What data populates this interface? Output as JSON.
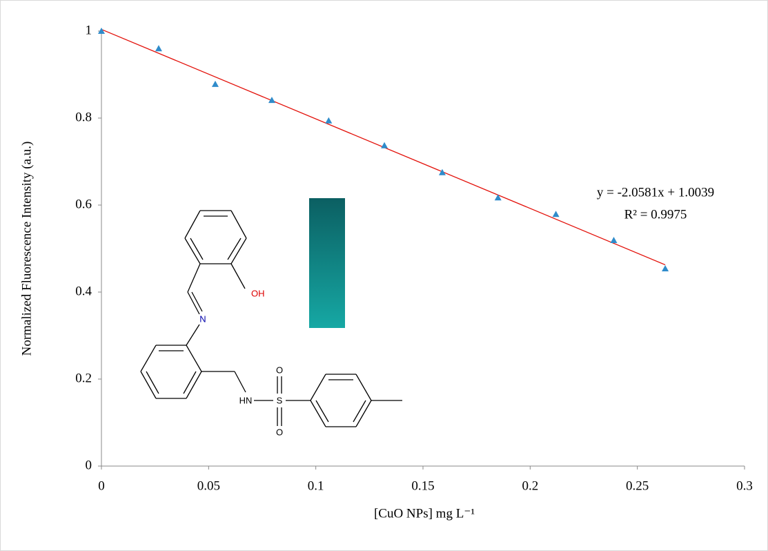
{
  "chart_data": {
    "type": "scatter",
    "x_label": "[CuO NPs] mg L⁻¹",
    "y_label": "Normalized  Fluorescence Intensity  (a.u.)",
    "series": [
      {
        "color": "#2f8ccb",
        "x": [
          0,
          0.0267,
          0.0531,
          0.0795,
          0.106,
          0.132,
          0.159,
          0.185,
          0.212,
          0.239,
          0.263
        ],
        "values": [
          1,
          0.96,
          0.878,
          0.841,
          0.794,
          0.737,
          0.675,
          0.617,
          0.579,
          0.519,
          0.454
        ]
      }
    ],
    "trendline": {
      "slope": -2.0581,
      "intercept": 1.0039,
      "color": "#e3120b",
      "equation": "y = -2.0581x + 1.0039",
      "r2": "R² = 0.9975"
    },
    "xlim": [
      0,
      0.3
    ],
    "xticks": [
      0,
      0.05,
      0.1,
      0.15,
      0.2,
      0.25,
      0.3
    ],
    "ylim": [
      0,
      1
    ],
    "yticks": [
      0,
      0.2,
      0.4,
      0.6,
      0.8,
      1
    ],
    "grid": false,
    "inset_labels": [
      "OH",
      "N",
      "HN",
      "S",
      "O",
      "O"
    ]
  }
}
